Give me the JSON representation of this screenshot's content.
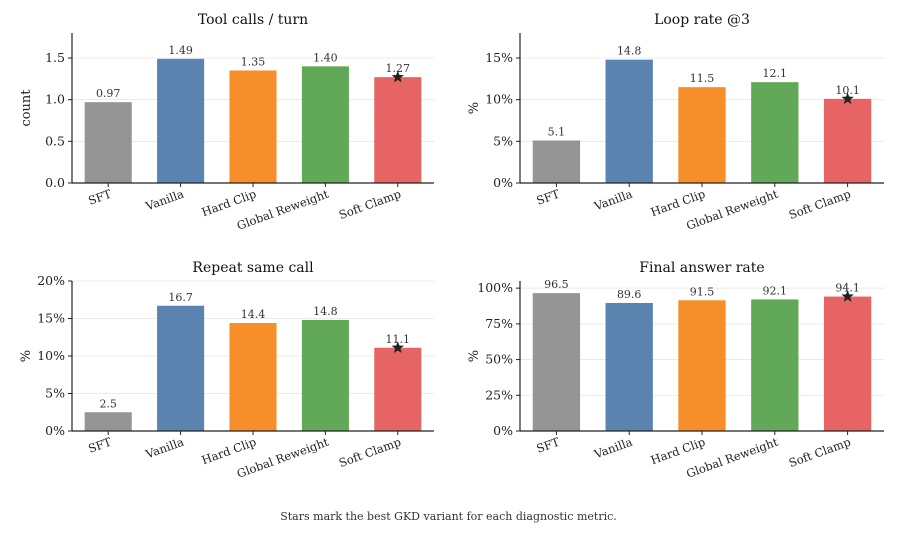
{
  "figure": {
    "caption": "Stars mark the best GKD variant for each diagnostic metric.",
    "colors": {
      "SFT": "#8c8c8c",
      "Vanilla": "#4c78a8",
      "Hard Clip": "#f58518",
      "Global Reweight": "#54a24b",
      "Soft Clamp": "#e45756"
    }
  },
  "chart_data": [
    {
      "type": "bar",
      "title": "Tool calls / turn",
      "ylabel": "count",
      "categories": [
        "SFT",
        "Vanilla",
        "Hard Clip",
        "Global Reweight",
        "Soft Clamp"
      ],
      "values": [
        0.97,
        1.49,
        1.35,
        1.4,
        1.27
      ],
      "value_labels": [
        "0.97",
        "1.49",
        "1.35",
        "1.40",
        "1.27"
      ],
      "ylim": [
        0,
        1.8
      ],
      "yticks": [
        0,
        0.5,
        1.0,
        1.5
      ],
      "ytick_labels": [
        "0.0",
        "0.5",
        "1.0",
        "1.5"
      ],
      "grid": true,
      "best": "Soft Clamp"
    },
    {
      "type": "bar",
      "title": "Loop rate @3",
      "ylabel": "%",
      "categories": [
        "SFT",
        "Vanilla",
        "Hard Clip",
        "Global Reweight",
        "Soft Clamp"
      ],
      "values": [
        5.1,
        14.8,
        11.5,
        12.1,
        10.1
      ],
      "value_labels": [
        "5.1",
        "14.8",
        "11.5",
        "12.1",
        "10.1"
      ],
      "ylim": [
        0,
        18
      ],
      "yticks": [
        0,
        5,
        10,
        15
      ],
      "ytick_labels": [
        "0%",
        "5%",
        "10%",
        "15%"
      ],
      "grid": true,
      "best": "Soft Clamp"
    },
    {
      "type": "bar",
      "title": "Repeat same call",
      "ylabel": "%",
      "categories": [
        "SFT",
        "Vanilla",
        "Hard Clip",
        "Global Reweight",
        "Soft Clamp"
      ],
      "values": [
        2.5,
        16.7,
        14.4,
        14.8,
        11.1
      ],
      "value_labels": [
        "2.5",
        "16.7",
        "14.4",
        "14.8",
        "11.1"
      ],
      "ylim": [
        0,
        20
      ],
      "yticks": [
        0,
        5,
        10,
        15,
        20
      ],
      "ytick_labels": [
        "0%",
        "5%",
        "10%",
        "15%",
        "20%"
      ],
      "grid": true,
      "best": "Soft Clamp"
    },
    {
      "type": "bar",
      "title": "Final answer rate",
      "ylabel": "%",
      "categories": [
        "SFT",
        "Vanilla",
        "Hard Clip",
        "Global Reweight",
        "Soft Clamp"
      ],
      "values": [
        96.5,
        89.6,
        91.5,
        92.1,
        94.1
      ],
      "value_labels": [
        "96.5",
        "89.6",
        "91.5",
        "92.1",
        "94.1"
      ],
      "ylim": [
        0,
        105
      ],
      "yticks": [
        0,
        25,
        50,
        75,
        100
      ],
      "ytick_labels": [
        "0%",
        "25%",
        "50%",
        "75%",
        "100%"
      ],
      "grid": true,
      "best": "Soft Clamp"
    }
  ]
}
